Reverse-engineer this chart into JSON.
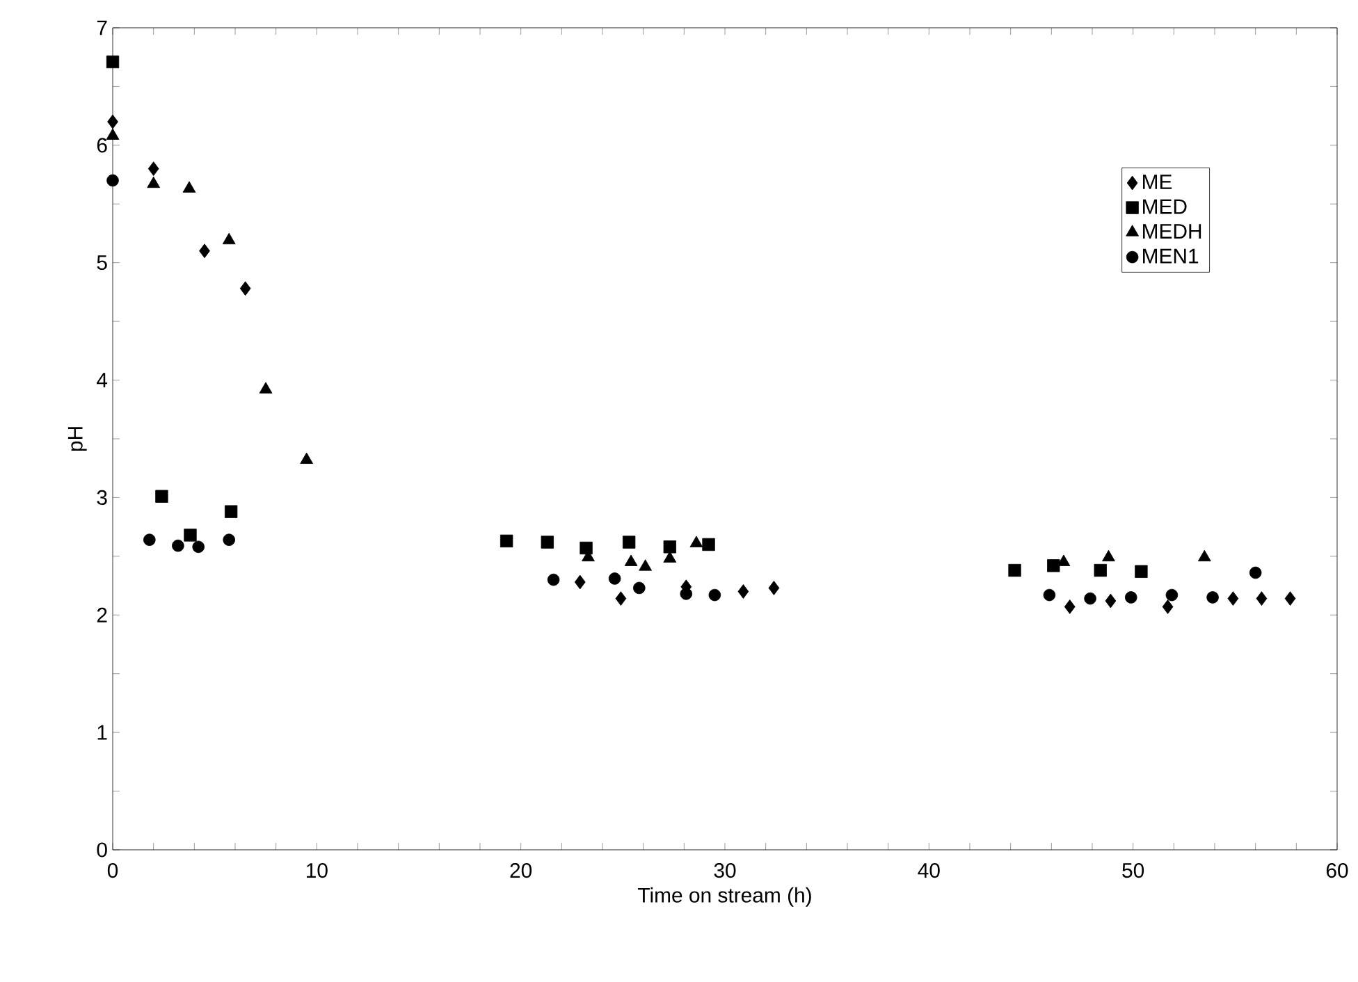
{
  "chart_data": {
    "type": "scatter",
    "xlabel": "Time on stream (h)",
    "ylabel": "pH",
    "xlim": [
      0,
      60
    ],
    "ylim": [
      0,
      7
    ],
    "xticks": [
      0,
      {
        "value": 2,
        "label": null
      },
      {
        "value": 4,
        "label": null
      },
      {
        "value": 6,
        "label": null
      },
      {
        "value": 8,
        "label": null
      },
      10,
      {
        "value": 12,
        "label": null
      },
      {
        "value": 14,
        "label": null
      },
      {
        "value": 16,
        "label": null
      },
      {
        "value": 18,
        "label": null
      },
      20,
      {
        "value": 22,
        "label": null
      },
      {
        "value": 24,
        "label": null
      },
      {
        "value": 26,
        "label": null
      },
      {
        "value": 28,
        "label": null
      },
      30,
      {
        "value": 32,
        "label": null
      },
      {
        "value": 34,
        "label": null
      },
      {
        "value": 36,
        "label": null
      },
      {
        "value": 38,
        "label": null
      },
      40,
      {
        "value": 42,
        "label": null
      },
      {
        "value": 44,
        "label": null
      },
      {
        "value": 46,
        "label": null
      },
      {
        "value": 48,
        "label": null
      },
      50,
      {
        "value": 52,
        "label": null
      },
      {
        "value": 54,
        "label": null
      },
      {
        "value": 56,
        "label": null
      },
      {
        "value": 58,
        "label": null
      },
      60
    ],
    "yticks": [
      0,
      {
        "value": 0.5,
        "label": null
      },
      1,
      {
        "value": 1.5,
        "label": null
      },
      2,
      {
        "value": 2.5,
        "label": null
      },
      3,
      {
        "value": 3.5,
        "label": null
      },
      4,
      {
        "value": 4.5,
        "label": null
      },
      5,
      {
        "value": 5.5,
        "label": null
      },
      6,
      {
        "value": 6.5,
        "label": null
      },
      7
    ],
    "grid": false,
    "legend": "right",
    "series": [
      {
        "name": "ME",
        "color": "#000000",
        "marker": "diamond",
        "x": [
          0,
          2.0,
          4.5,
          6.5,
          22.9,
          24.9,
          28.1,
          30.9,
          32.4,
          46.9,
          48.9,
          51.7,
          54.9,
          56.3,
          57.7
        ],
        "values": [
          6.2,
          5.8,
          5.1,
          4.78,
          2.28,
          2.14,
          2.24,
          2.2,
          2.23,
          2.07,
          2.12,
          2.07,
          2.14,
          2.14,
          2.14
        ]
      },
      {
        "name": "MED",
        "color": "#000000",
        "marker": "square",
        "x": [
          0,
          2.4,
          3.8,
          5.8,
          19.3,
          21.3,
          23.2,
          25.3,
          27.3,
          29.2,
          44.2,
          46.1,
          48.4,
          50.4
        ],
        "values": [
          6.71,
          3.01,
          2.68,
          2.88,
          2.63,
          2.62,
          2.57,
          2.62,
          2.58,
          2.6,
          2.38,
          2.42,
          2.38,
          2.37
        ]
      },
      {
        "name": "MEDH",
        "color": "#000000",
        "marker": "triangle",
        "x": [
          0,
          2.0,
          3.75,
          5.7,
          7.5,
          9.5,
          23.3,
          25.4,
          26.1,
          27.3,
          28.6,
          46.6,
          48.8,
          53.5
        ],
        "values": [
          6.08,
          5.67,
          5.63,
          5.19,
          3.92,
          3.32,
          2.49,
          2.45,
          2.41,
          2.48,
          2.61,
          2.45,
          2.49,
          2.49
        ]
      },
      {
        "name": "MEN1",
        "color": "#000000",
        "marker": "circle",
        "x": [
          0,
          1.8,
          3.2,
          4.2,
          5.7,
          21.6,
          24.6,
          25.8,
          28.1,
          29.5,
          45.9,
          47.9,
          49.9,
          51.9,
          53.9,
          56.0
        ],
        "values": [
          5.7,
          2.64,
          2.59,
          2.58,
          2.64,
          2.3,
          2.31,
          2.23,
          2.18,
          2.17,
          2.17,
          2.14,
          2.15,
          2.17,
          2.15,
          2.36
        ]
      }
    ]
  }
}
